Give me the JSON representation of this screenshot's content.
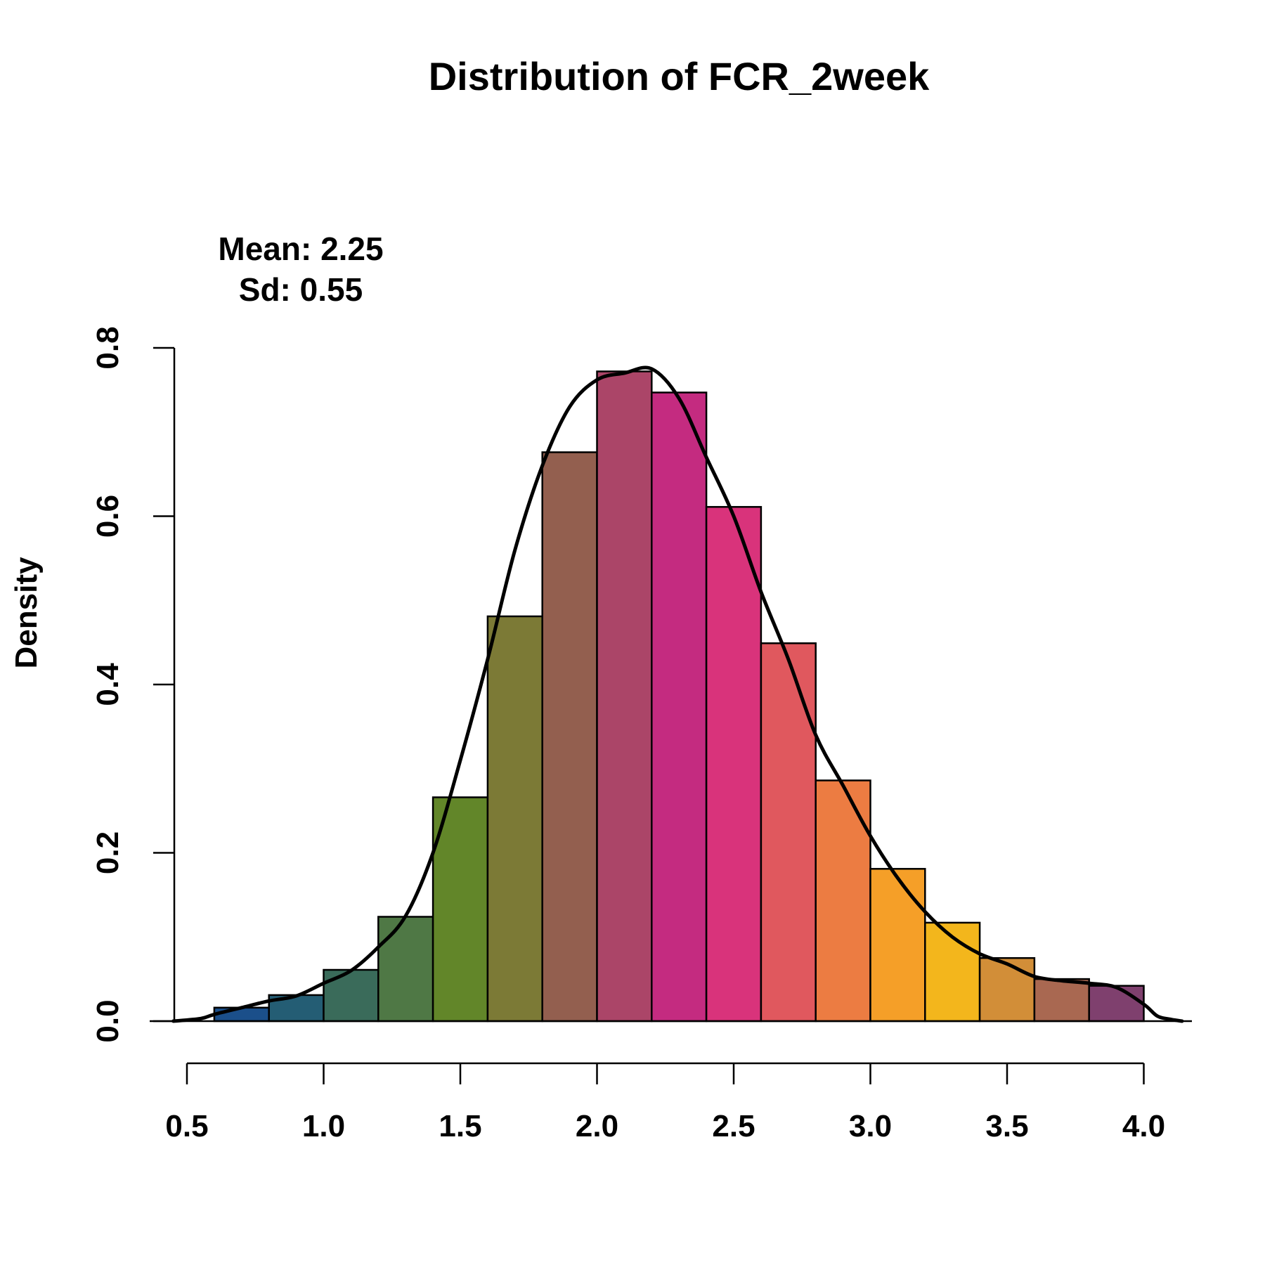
{
  "chart_data": {
    "type": "bar",
    "title": "Distribution of FCR_2week",
    "xlabel": "",
    "ylabel": "Density",
    "xlim": [
      0.5,
      4.0
    ],
    "ylim": [
      0,
      0.8
    ],
    "x_ticks": [
      "0.5",
      "1.0",
      "1.5",
      "2.0",
      "2.5",
      "3.0",
      "3.5",
      "4.0"
    ],
    "y_ticks": [
      "0.0",
      "0.2",
      "0.4",
      "0.6",
      "0.8"
    ],
    "bin_edges": [
      0.6,
      0.8,
      1.0,
      1.2,
      1.4,
      1.6,
      1.8,
      2.0,
      2.2,
      2.4,
      2.6,
      2.8,
      3.0,
      3.2,
      3.4,
      3.6,
      3.8,
      4.0
    ],
    "values": [
      0.016,
      0.031,
      0.061,
      0.124,
      0.266,
      0.481,
      0.676,
      0.772,
      0.747,
      0.611,
      0.449,
      0.286,
      0.181,
      0.117,
      0.075,
      0.05,
      0.042
    ],
    "bar_colors": [
      "#1b4f8a",
      "#245d74",
      "#3a6b5a",
      "#4f7845",
      "#628629",
      "#7c7a36",
      "#935f4f",
      "#ab4568",
      "#c42b80",
      "#d9337b",
      "#e0585e",
      "#ec7c42",
      "#f59f28",
      "#f3b61c",
      "#d28e38",
      "#a96851",
      "#7f406e"
    ],
    "density_curve": {
      "x": [
        0.45,
        0.55,
        0.6,
        0.7,
        0.8,
        0.9,
        1.0,
        1.1,
        1.2,
        1.3,
        1.4,
        1.5,
        1.6,
        1.7,
        1.8,
        1.9,
        2.0,
        2.1,
        2.2,
        2.3,
        2.4,
        2.5,
        2.6,
        2.7,
        2.8,
        2.9,
        3.0,
        3.1,
        3.2,
        3.3,
        3.4,
        3.5,
        3.6,
        3.7,
        3.8,
        3.9,
        4.0,
        4.05,
        4.1,
        4.14
      ],
      "y": [
        0.0,
        0.003,
        0.008,
        0.016,
        0.024,
        0.03,
        0.045,
        0.06,
        0.088,
        0.125,
        0.2,
        0.31,
        0.43,
        0.56,
        0.66,
        0.73,
        0.762,
        0.77,
        0.775,
        0.74,
        0.67,
        0.6,
        0.51,
        0.43,
        0.34,
        0.28,
        0.22,
        0.17,
        0.13,
        0.1,
        0.08,
        0.068,
        0.053,
        0.048,
        0.045,
        0.04,
        0.02,
        0.006,
        0.002,
        0.0
      ]
    },
    "annotations": [
      "Mean: 2.25",
      "Sd: 0.55"
    ],
    "grid": false,
    "legend": "none"
  }
}
